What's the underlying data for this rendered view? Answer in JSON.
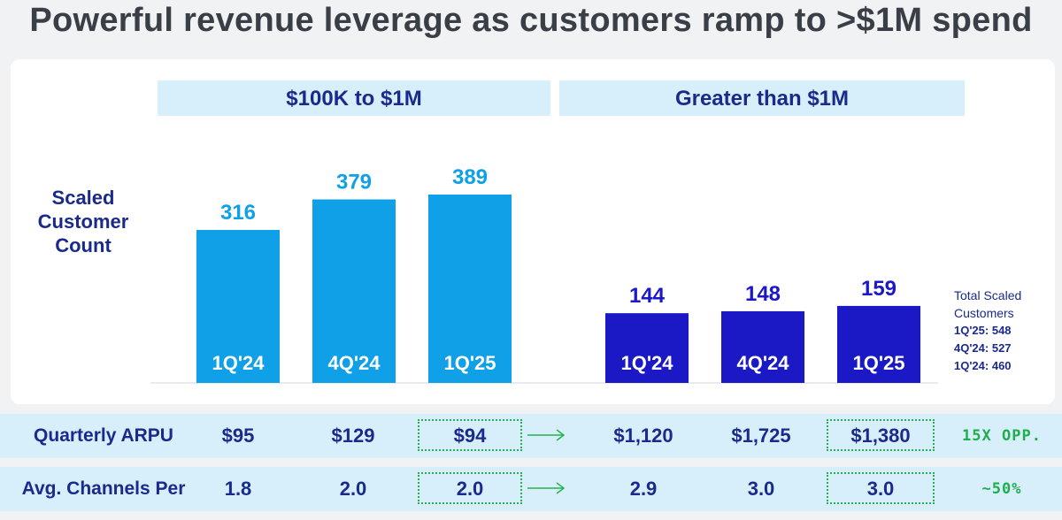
{
  "title": "Powerful revenue leverage as customers ramp to >$1M spend",
  "chart_data": {
    "type": "bar",
    "ylabel": "Scaled Customer Count",
    "groups": [
      {
        "name": "$100K to $1M",
        "color": "#10a0e8",
        "bars": [
          {
            "category": "1Q'24",
            "value": 316
          },
          {
            "category": "4Q'24",
            "value": 379
          },
          {
            "category": "1Q'25",
            "value": 389
          }
        ]
      },
      {
        "name": "Greater than $1M",
        "color": "#1b19c6",
        "bars": [
          {
            "category": "1Q'24",
            "value": 144
          },
          {
            "category": "4Q'24",
            "value": 148
          },
          {
            "category": "1Q'25",
            "value": 159
          }
        ]
      }
    ],
    "annotation": {
      "heading": "Total Scaled Customers",
      "lines": [
        "1Q'25: 548",
        "4Q'24: 527",
        "1Q'24: 460"
      ]
    }
  },
  "metrics": [
    {
      "label": "Quarterly ARPU",
      "values": [
        "$95",
        "$129",
        "$94",
        "$1,120",
        "$1,725",
        "$1,380"
      ],
      "note": "15X OPP."
    },
    {
      "label": "Avg. Channels Per",
      "values": [
        "1.8",
        "2.0",
        "2.0",
        "2.9",
        "3.0",
        "3.0"
      ],
      "note": "~50%"
    }
  ],
  "colors": {
    "accent_text": "#1a2a8c",
    "light_bar": "#10a0e8",
    "dark_bar": "#1b19c6",
    "header_band": "#d6effa",
    "highlight": "#27b14e"
  }
}
